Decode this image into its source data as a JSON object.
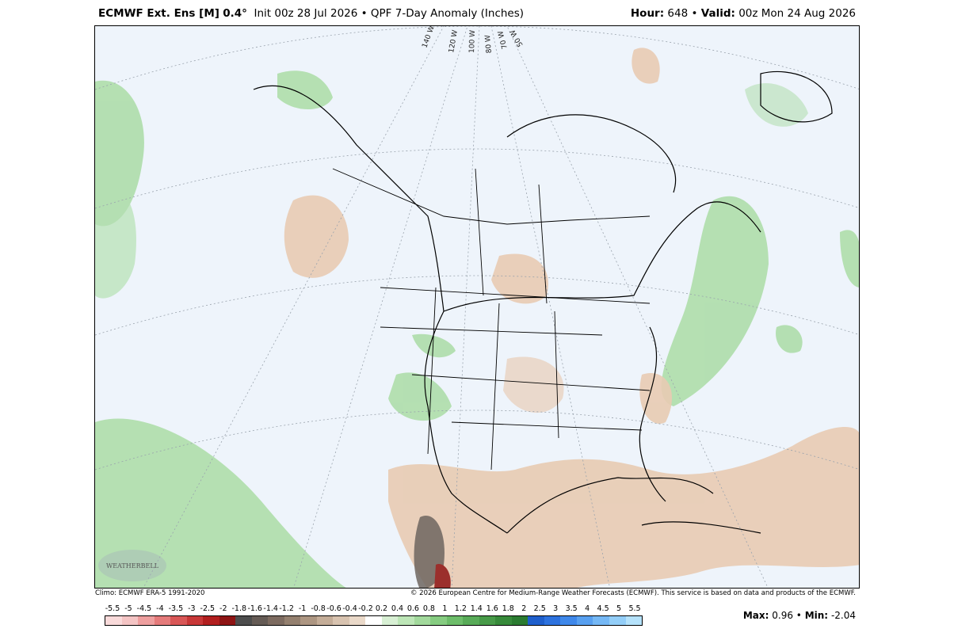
{
  "header": {
    "model": "ECMWF Ext.  Ens [M]",
    "resolution": "0.4°",
    "init": "Init 00z 28 Jul 2026",
    "product": "QPF 7-Day Anomaly (Inches)",
    "hour_label": "Hour:",
    "hour_value": "648",
    "valid_label": "Valid:",
    "valid_value": "00z Mon 24 Aug 2026",
    "bullet": "•"
  },
  "map": {
    "longitude_labels": [
      "140 W",
      "120 W",
      "100 W",
      "80 W",
      "70 W",
      "50 W"
    ],
    "watermark": "WEATHERBELL",
    "land_color": "#eef4fb",
    "wet_color": "#a6dba0",
    "dry_color": "#e8cbb2",
    "very_dry_color": "#5e5e5e"
  },
  "footer": {
    "climo": "Climo: ECMWF ERA-5 1991-2020",
    "copyright": "© 2026 European Centre for Medium-Range Weather Forecasts (ECMWF). This service is based on data and products of the ECMWF."
  },
  "colorbar": {
    "ticks": [
      "-5.5",
      "-5",
      "-4.5",
      "-4",
      "-3.5",
      "-3",
      "-2.5",
      "-2",
      "-1.8",
      "-1.6",
      "-1.4",
      "-1.2",
      "-1",
      "-0.8",
      "-0.6",
      "-0.4",
      "-0.2",
      "0.2",
      "0.4",
      "0.6",
      "0.8",
      "1",
      "1.2",
      "1.4",
      "1.6",
      "1.8",
      "2",
      "2.5",
      "3",
      "3.5",
      "4",
      "4.5",
      "5",
      "5.5"
    ],
    "colors": [
      "#f9dada",
      "#f4c4c4",
      "#ee9f9f",
      "#e57b7b",
      "#d95757",
      "#c83838",
      "#b21f1f",
      "#8e1414",
      "#4d4d4d",
      "#655b55",
      "#7d6b60",
      "#94806f",
      "#ad9682",
      "#c4ad98",
      "#d8c3b0",
      "#ead9c9",
      "#ffffff",
      "#d8f0d4",
      "#bde6b7",
      "#a2d99c",
      "#86cc81",
      "#6dbd6a",
      "#58ab58",
      "#479a48",
      "#378a3a",
      "#2b7b31",
      "#1f5fcc",
      "#2d72de",
      "#3f88ea",
      "#58a0f0",
      "#75b8f5",
      "#93cef8",
      "#b5e2fb"
    ]
  },
  "stats": {
    "max_label": "Max:",
    "max_value": "0.96",
    "min_label": "Min:",
    "min_value": "-2.04"
  }
}
